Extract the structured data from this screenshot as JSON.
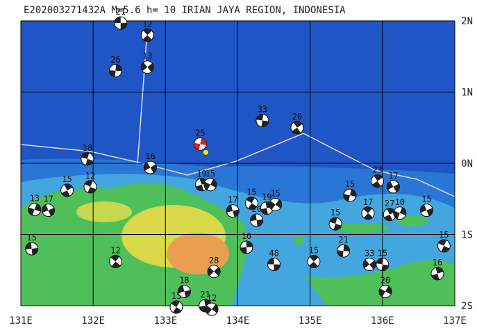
{
  "header": {
    "title": "E202003271432A  M=5.6 h= 10 IRIAN JAYA REGION, INDONESIA"
  },
  "map": {
    "lon_ticks": [
      {
        "value": 131,
        "label": "131E"
      },
      {
        "value": 132,
        "label": "132E"
      },
      {
        "value": 133,
        "label": "133E"
      },
      {
        "value": 134,
        "label": "134E"
      },
      {
        "value": 135,
        "label": "135E"
      },
      {
        "value": 136,
        "label": "136E"
      },
      {
        "value": 137,
        "label": "137E"
      }
    ],
    "lat_ticks": [
      {
        "value": 2,
        "label": "2N"
      },
      {
        "value": 1,
        "label": "1N"
      },
      {
        "value": 0,
        "label": "0N"
      },
      {
        "value": -1,
        "label": "1S"
      },
      {
        "value": -2,
        "label": "2S"
      }
    ],
    "events": [
      {
        "label": "21",
        "lon": 132.38,
        "lat": 1.97
      },
      {
        "label": "12",
        "lon": 132.75,
        "lat": 1.8
      },
      {
        "label": "26",
        "lon": 132.31,
        "lat": 1.3
      },
      {
        "label": "13",
        "lon": 132.75,
        "lat": 1.35
      },
      {
        "label": "33",
        "lon": 134.34,
        "lat": 0.6
      },
      {
        "label": "20",
        "lon": 134.82,
        "lat": 0.5
      },
      {
        "label": "25",
        "lon": 133.48,
        "lat": 0.27,
        "color": "#e02020"
      },
      {
        "label": "16",
        "lon": 132.79,
        "lat": -0.06
      },
      {
        "label": "18",
        "lon": 131.92,
        "lat": 0.06
      },
      {
        "label": "15",
        "lon": 131.64,
        "lat": -0.38
      },
      {
        "label": "13",
        "lon": 131.19,
        "lat": -0.65
      },
      {
        "label": "17",
        "lon": 131.38,
        "lat": -0.66
      },
      {
        "label": "12",
        "lon": 131.96,
        "lat": -0.33
      },
      {
        "label": "19",
        "lon": 133.5,
        "lat": -0.3
      },
      {
        "label": "15",
        "lon": 133.62,
        "lat": -0.3
      },
      {
        "label": "17",
        "lon": 133.93,
        "lat": -0.67
      },
      {
        "label": "15",
        "lon": 134.19,
        "lat": -0.56
      },
      {
        "label": "19",
        "lon": 134.4,
        "lat": -0.63
      },
      {
        "label": "15",
        "lon": 134.52,
        "lat": -0.58
      },
      {
        "label": "20",
        "lon": 134.26,
        "lat": -0.8
      },
      {
        "label": "12",
        "lon": 132.31,
        "lat": -1.38
      },
      {
        "label": "10",
        "lon": 134.12,
        "lat": -1.18
      },
      {
        "label": "28",
        "lon": 133.67,
        "lat": -1.52
      },
      {
        "label": "48",
        "lon": 134.5,
        "lat": -1.42
      },
      {
        "label": "15",
        "lon": 135.05,
        "lat": -1.38
      },
      {
        "label": "21",
        "lon": 135.46,
        "lat": -1.23
      },
      {
        "label": "33",
        "lon": 135.82,
        "lat": -1.42
      },
      {
        "label": "15",
        "lon": 136.0,
        "lat": -1.42
      },
      {
        "label": "23",
        "lon": 135.93,
        "lat": -0.25
      },
      {
        "label": "15",
        "lon": 135.55,
        "lat": -0.45
      },
      {
        "label": "17",
        "lon": 136.15,
        "lat": -0.33
      },
      {
        "label": "15",
        "lon": 135.35,
        "lat": -0.85
      },
      {
        "label": "27",
        "lon": 136.1,
        "lat": -0.72
      },
      {
        "label": "10",
        "lon": 136.24,
        "lat": -0.7
      },
      {
        "label": "15",
        "lon": 136.61,
        "lat": -0.66
      },
      {
        "label": "15",
        "lon": 136.85,
        "lat": -1.16
      },
      {
        "label": "16",
        "lon": 136.76,
        "lat": -1.55
      },
      {
        "label": "20",
        "lon": 136.04,
        "lat": -1.8
      },
      {
        "label": "18",
        "lon": 133.26,
        "lat": -1.8
      },
      {
        "label": "15",
        "lon": 133.15,
        "lat": -2.02
      },
      {
        "label": "21",
        "lon": 133.55,
        "lat": -2.0
      },
      {
        "label": "12",
        "lon": 133.64,
        "lat": -2.05
      },
      {
        "label": "15",
        "lon": 131.15,
        "lat": -1.2
      },
      {
        "label": "17",
        "lon": 135.8,
        "lat": -0.7
      }
    ]
  }
}
